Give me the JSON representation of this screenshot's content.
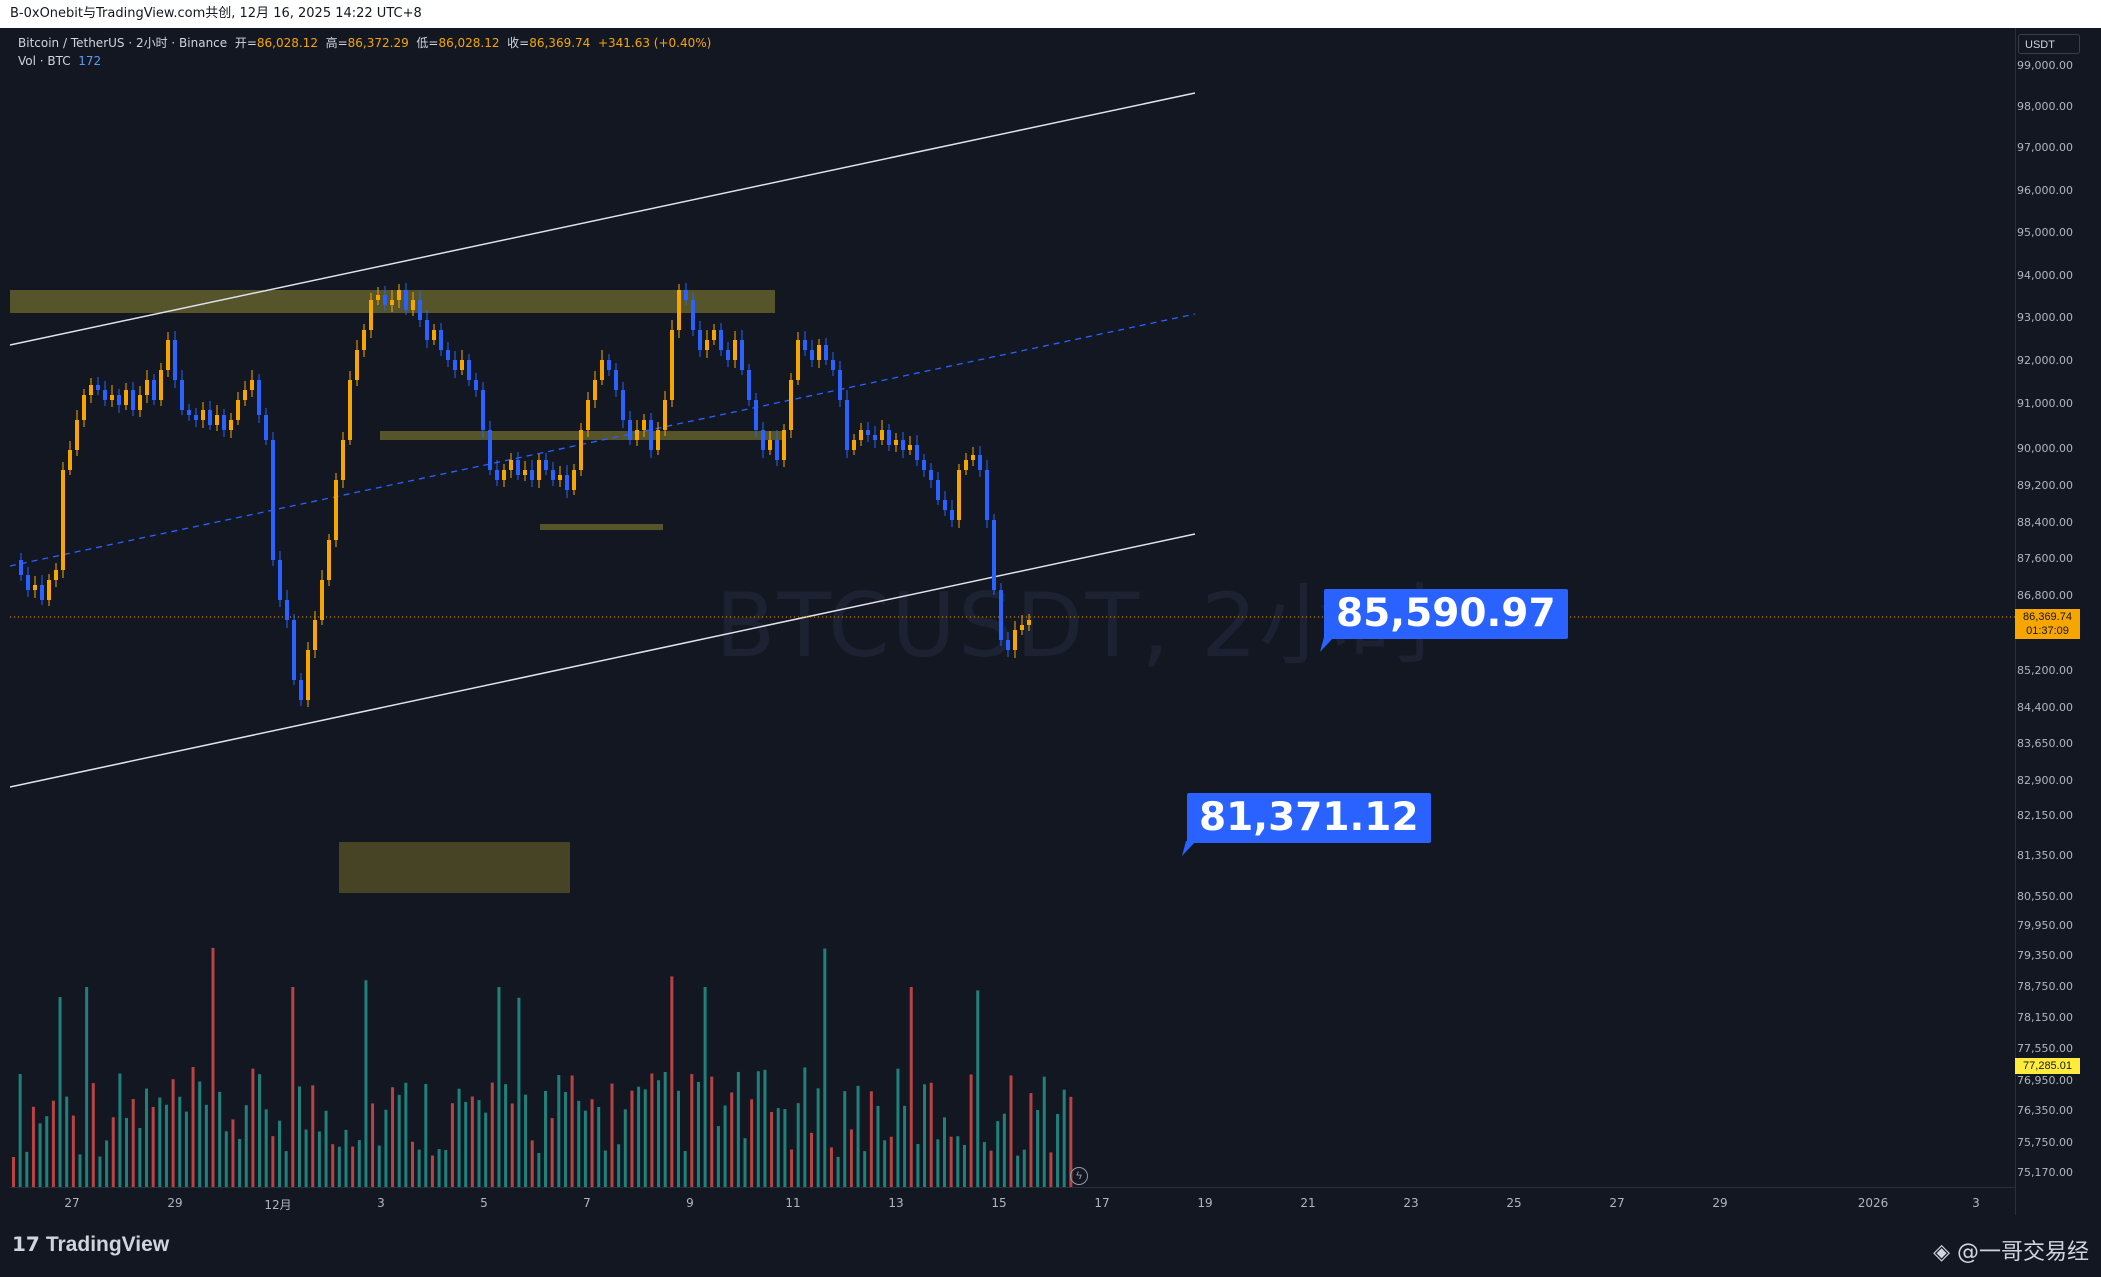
{
  "share_bar": {
    "text": "B-0xOnebit与TradingView.com共创, 12月 16, 2025 14:22 UTC+8"
  },
  "legend": {
    "symbol": "Bitcoin / TetherUS · 2小时 · Binance",
    "open_label": "开=",
    "open": "86,028.12",
    "high_label": "高=",
    "high": "86,372.29",
    "low_label": "低=",
    "low": "86,028.12",
    "close_label": "收=",
    "close": "86,369.74",
    "change": "+341.63 (+0.40%)",
    "vol_label": "Vol · BTC",
    "vol": "172"
  },
  "watermark": "BTCUSDT, 2小时",
  "currency": "USDT",
  "price_labels": [
    "99,000.00",
    "98,000.00",
    "97,000.00",
    "96,000.00",
    "95,000.00",
    "94,000.00",
    "93,000.00",
    "92,000.00",
    "91,000.00",
    "90,000.00",
    "89,200.00",
    "88,400.00",
    "87,600.00",
    "86,800.00",
    "85,200.00",
    "84,400.00",
    "83,650.00",
    "82,900.00",
    "82,150.00",
    "81,350.00",
    "80,550.00",
    "79,950.00",
    "79,350.00",
    "78,750.00",
    "78,150.00",
    "77,550.00",
    "76,950.00",
    "76,350.00",
    "75,750.00",
    "75,170.00"
  ],
  "current_price": {
    "price": "86,369.74",
    "countdown": "01:37:09"
  },
  "marker_price": "77,285.01",
  "time_labels": [
    "27",
    "29",
    "12月",
    "3",
    "5",
    "7",
    "9",
    "11",
    "13",
    "15",
    "17",
    "19",
    "21",
    "23",
    "25",
    "27",
    "29",
    "2026",
    "3"
  ],
  "callouts": {
    "upper": "85,590.97",
    "lower": "81,371.12"
  },
  "footer": {
    "brand": "TradingView",
    "author": "@一哥交易经"
  },
  "colors": {
    "up": "#f7a600",
    "down": "#2962ff",
    "vol_up": "#26a69a",
    "vol_down": "#ef5350",
    "zone": "#5d5b2b",
    "channel": "#ffffff"
  }
}
